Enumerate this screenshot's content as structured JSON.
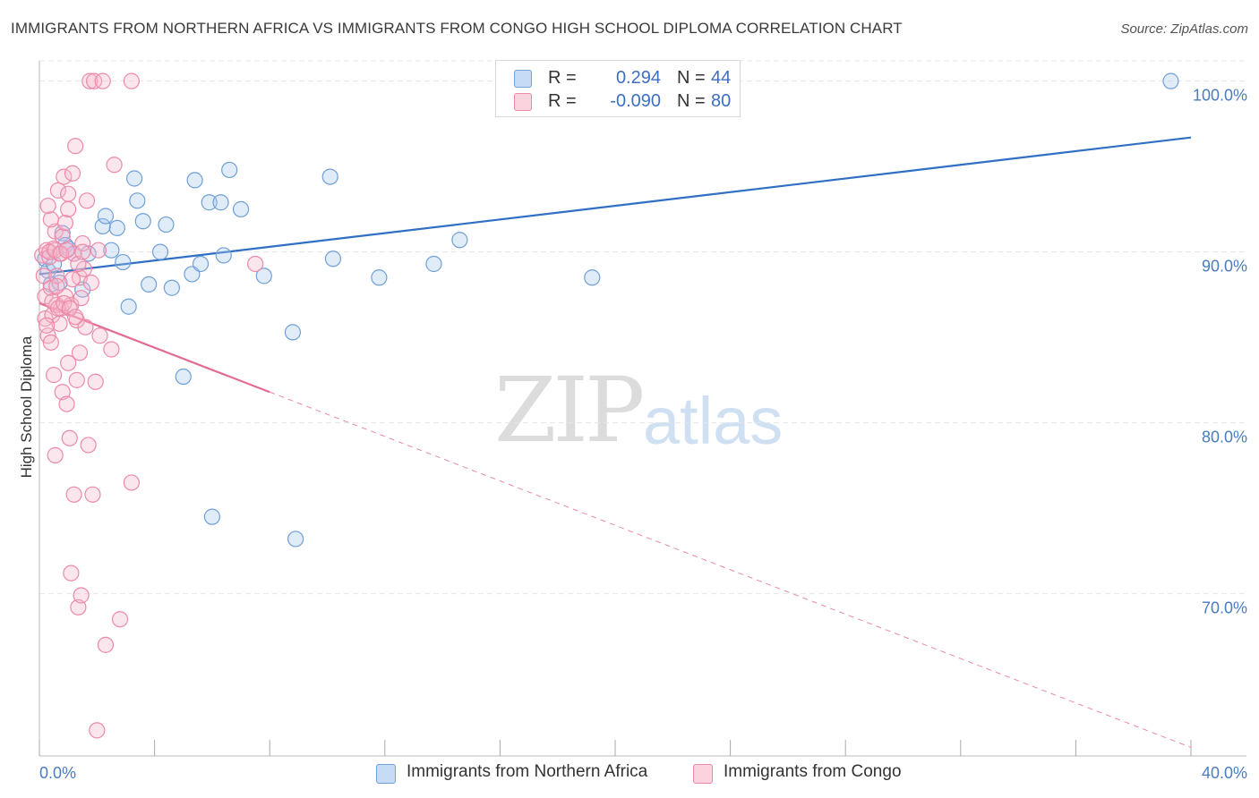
{
  "header": {
    "title": "IMMIGRANTS FROM NORTHERN AFRICA VS IMMIGRANTS FROM CONGO HIGH SCHOOL DIPLOMA CORRELATION CHART",
    "source": "Source: ZipAtlas.com"
  },
  "watermark": {
    "zip": "ZIP",
    "atlas": "atlas"
  },
  "legend": {
    "r_label": "R =",
    "n_label": "N =",
    "series1": {
      "r": "0.294",
      "n": "44"
    },
    "series2": {
      "r": "-0.090",
      "n": "80"
    }
  },
  "colors": {
    "blue_fill": "#a9c8ee",
    "blue_stroke": "#6f9fd6",
    "blue_line": "#2f6fc4",
    "pink_fill": "#f6b8ca",
    "pink_stroke": "#ec8aa8",
    "pink_line": "#e26b94",
    "grid": "#e6e6e6",
    "tick_text": "#4a7cc0",
    "r_value_text": "#3d6fc0"
  },
  "chart_data": {
    "type": "scatter",
    "title": "IMMIGRANTS FROM NORTHERN AFRICA VS IMMIGRANTS FROM CONGO HIGH SCHOOL DIPLOMA CORRELATION CHART",
    "xlabel": "",
    "ylabel": "High School Diploma",
    "xlim": [
      0,
      40
    ],
    "ylim": [
      60.5,
      101.5
    ],
    "x_tick_labels": [
      "0.0%",
      "40.0%"
    ],
    "y_ticks": [
      {
        "value": 70,
        "label": "70.0%"
      },
      {
        "value": 80,
        "label": "80.0%"
      },
      {
        "value": 90,
        "label": "90.0%"
      },
      {
        "value": 100,
        "label": "100.0%"
      }
    ],
    "series": [
      {
        "name": "Immigrants from Northern Africa",
        "color": "blue",
        "r": 0.294,
        "n": 44,
        "trend": {
          "x": [
            0,
            40
          ],
          "y": [
            88.7,
            96.7
          ],
          "dashed_from_x": null
        },
        "points": [
          [
            0.2,
            89.6
          ],
          [
            0.3,
            88.9
          ],
          [
            0.4,
            88.1
          ],
          [
            0.5,
            89.3
          ],
          [
            0.7,
            88.2
          ],
          [
            0.8,
            91.1
          ],
          [
            0.9,
            90.4
          ],
          [
            1.0,
            90.2
          ],
          [
            1.2,
            89.9
          ],
          [
            1.5,
            87.8
          ],
          [
            1.7,
            89.9
          ],
          [
            2.2,
            91.5
          ],
          [
            2.3,
            92.1
          ],
          [
            2.5,
            90.1
          ],
          [
            2.7,
            91.4
          ],
          [
            2.9,
            89.4
          ],
          [
            3.1,
            86.8
          ],
          [
            3.3,
            94.3
          ],
          [
            3.4,
            93.0
          ],
          [
            3.6,
            91.8
          ],
          [
            3.8,
            88.1
          ],
          [
            4.2,
            90.0
          ],
          [
            4.4,
            91.6
          ],
          [
            4.6,
            87.9
          ],
          [
            5.0,
            82.7
          ],
          [
            5.3,
            88.7
          ],
          [
            5.4,
            94.2
          ],
          [
            5.6,
            89.3
          ],
          [
            5.9,
            92.9
          ],
          [
            6.0,
            74.5
          ],
          [
            6.3,
            92.9
          ],
          [
            6.4,
            89.8
          ],
          [
            6.6,
            94.8
          ],
          [
            7.0,
            92.5
          ],
          [
            7.8,
            88.6
          ],
          [
            8.8,
            85.3
          ],
          [
            8.9,
            73.2
          ],
          [
            10.1,
            94.4
          ],
          [
            10.2,
            89.6
          ],
          [
            11.8,
            88.5
          ],
          [
            13.7,
            89.3
          ],
          [
            14.6,
            90.7
          ],
          [
            19.2,
            88.5
          ],
          [
            39.3,
            100.0
          ]
        ]
      },
      {
        "name": "Immigrants from Congo",
        "color": "pink",
        "r": -0.09,
        "n": 80,
        "trend": {
          "x": [
            0,
            40
          ],
          "y": [
            87.0,
            61.0
          ],
          "dashed_from_x": 8.0
        },
        "points": [
          [
            0.1,
            89.8
          ],
          [
            0.15,
            88.6
          ],
          [
            0.2,
            87.4
          ],
          [
            0.2,
            86.1
          ],
          [
            0.25,
            90.1
          ],
          [
            0.3,
            85.1
          ],
          [
            0.3,
            92.7
          ],
          [
            0.35,
            89.7
          ],
          [
            0.4,
            87.9
          ],
          [
            0.4,
            84.7
          ],
          [
            0.45,
            86.3
          ],
          [
            0.5,
            82.8
          ],
          [
            0.5,
            90.2
          ],
          [
            0.55,
            78.1
          ],
          [
            0.55,
            91.2
          ],
          [
            0.6,
            86.9
          ],
          [
            0.6,
            88.6
          ],
          [
            0.65,
            93.6
          ],
          [
            0.7,
            85.8
          ],
          [
            0.7,
            89.9
          ],
          [
            0.75,
            86.7
          ],
          [
            0.8,
            81.8
          ],
          [
            0.8,
            90.9
          ],
          [
            0.85,
            94.4
          ],
          [
            0.9,
            87.4
          ],
          [
            0.9,
            91.7
          ],
          [
            0.95,
            81.1
          ],
          [
            1.0,
            83.5
          ],
          [
            1.0,
            93.4
          ],
          [
            1.05,
            79.1
          ],
          [
            1.1,
            86.9
          ],
          [
            1.1,
            71.2
          ],
          [
            1.15,
            94.6
          ],
          [
            1.2,
            75.8
          ],
          [
            1.2,
            89.9
          ],
          [
            1.25,
            96.2
          ],
          [
            1.3,
            86.0
          ],
          [
            1.3,
            82.5
          ],
          [
            1.35,
            69.2
          ],
          [
            1.4,
            84.1
          ],
          [
            1.4,
            88.5
          ],
          [
            1.45,
            69.9
          ],
          [
            1.5,
            90.5
          ],
          [
            1.55,
            89.0
          ],
          [
            1.6,
            85.6
          ],
          [
            1.65,
            93.0
          ],
          [
            1.7,
            78.7
          ],
          [
            1.75,
            100.0
          ],
          [
            1.8,
            88.2
          ],
          [
            1.85,
            75.8
          ],
          [
            1.9,
            100.0
          ],
          [
            1.95,
            82.4
          ],
          [
            2.0,
            62.0
          ],
          [
            2.05,
            90.1
          ],
          [
            2.1,
            85.1
          ],
          [
            2.2,
            100.0
          ],
          [
            2.3,
            67.0
          ],
          [
            2.5,
            84.3
          ],
          [
            2.6,
            95.1
          ],
          [
            2.8,
            68.5
          ],
          [
            3.2,
            76.5
          ],
          [
            3.2,
            100.0
          ],
          [
            7.5,
            89.3
          ],
          [
            0.35,
            90.0
          ],
          [
            0.45,
            87.1
          ],
          [
            0.55,
            90.1
          ],
          [
            0.65,
            86.7
          ],
          [
            0.75,
            89.9
          ],
          [
            0.85,
            87.0
          ],
          [
            0.95,
            90.1
          ],
          [
            1.05,
            86.7
          ],
          [
            1.15,
            88.4
          ],
          [
            1.25,
            86.2
          ],
          [
            1.35,
            89.3
          ],
          [
            1.45,
            87.3
          ],
          [
            0.25,
            85.7
          ],
          [
            0.4,
            91.9
          ],
          [
            0.6,
            88.0
          ],
          [
            1.0,
            92.5
          ],
          [
            1.5,
            90.0
          ]
        ]
      }
    ]
  },
  "bottom_legend": {
    "series1": "Immigrants from Northern Africa",
    "series2": "Immigrants from Congo"
  }
}
